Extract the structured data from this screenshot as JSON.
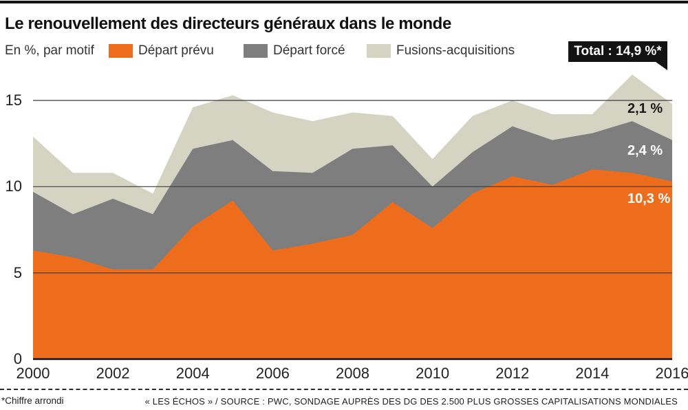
{
  "page": {
    "top_bar_color": "#131313"
  },
  "header": {
    "title": "Le renouvellement des directeurs généraux dans le monde",
    "subtitle": "En %, par motif"
  },
  "legend": {
    "items": [
      {
        "label": "Départ prévu",
        "color": "#ee6d1c"
      },
      {
        "label": "Départ forcé",
        "color": "#7e7e7e"
      },
      {
        "label": "Fusions-acquisitions",
        "color": "#d5d3c2"
      }
    ]
  },
  "badge": {
    "label": "Total : 14,9 %*",
    "color": "#131313"
  },
  "annotations": [
    {
      "label": "2,1 %",
      "color": "#1a1a1a",
      "series": "Fusions-acquisitions"
    },
    {
      "label": "2,4 %",
      "color": "#ffffff",
      "series": "Départ forcé"
    },
    {
      "label": "10,3 %",
      "color": "#ffffff",
      "series": "Départ prévu"
    }
  ],
  "footer": {
    "footnote": "*Chiffre arrondi",
    "source": "« LES ÉCHOS » / SOURCE : PWC, SONDAGE AUPRÈS DES DG DES 2.500 PLUS GROSSES CAPITALISATIONS MONDIALES"
  },
  "chart_data": {
    "type": "area",
    "stacked": true,
    "title": "Le renouvellement des directeurs généraux dans le monde",
    "unit_note": "En %, par motif",
    "x": [
      2000,
      2001,
      2002,
      2003,
      2004,
      2005,
      2006,
      2007,
      2008,
      2009,
      2010,
      2011,
      2012,
      2013,
      2014,
      2015,
      2016
    ],
    "x_tick_labels": [
      "2000",
      "2002",
      "2004",
      "2006",
      "2008",
      "2010",
      "2012",
      "2014",
      "2016"
    ],
    "y_ticks": [
      0,
      5,
      10,
      15
    ],
    "ylim": [
      0,
      17
    ],
    "grid": true,
    "legend_position": "top",
    "series": [
      {
        "name": "Départ prévu",
        "color": "#ee6d1c",
        "values": [
          6.3,
          5.9,
          5.2,
          5.2,
          7.7,
          9.2,
          6.3,
          6.7,
          7.2,
          9.1,
          7.6,
          9.6,
          10.6,
          10.1,
          11.0,
          10.8,
          10.3
        ]
      },
      {
        "name": "Départ forcé",
        "color": "#7e7e7e",
        "values": [
          3.4,
          2.5,
          4.1,
          3.2,
          4.5,
          3.5,
          4.6,
          4.1,
          5.0,
          3.3,
          2.4,
          2.4,
          2.9,
          2.6,
          2.1,
          3.0,
          2.4
        ]
      },
      {
        "name": "Fusions-acquisitions",
        "color": "#d5d3c2",
        "values": [
          3.2,
          2.4,
          1.5,
          1.2,
          2.4,
          2.6,
          3.4,
          3.0,
          2.1,
          1.7,
          1.6,
          2.1,
          1.5,
          1.5,
          1.1,
          2.7,
          2.1
        ]
      }
    ],
    "total_2016": "14,9 %*"
  }
}
